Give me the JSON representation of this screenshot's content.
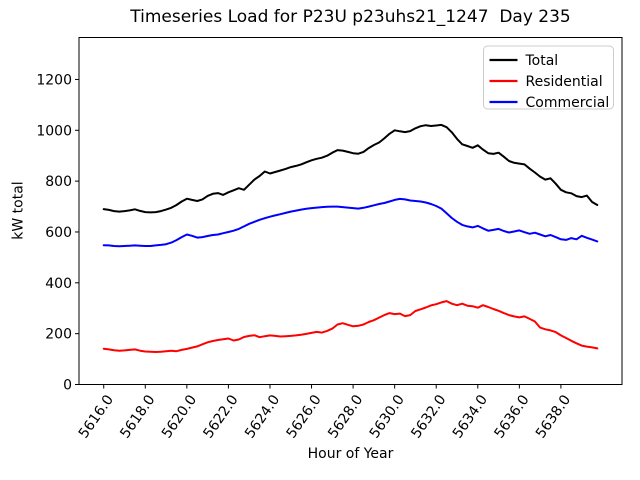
{
  "figure": {
    "background": "#ffffff"
  },
  "chart_data": {
    "type": "line",
    "title": "Timeseries Load for P23U p23uhs21_1247  Day 235",
    "xlabel": "Hour of Year",
    "ylabel": "kW total",
    "grid": false,
    "legend": {
      "position": "upper right",
      "border_color": "#cccccc"
    },
    "xlim": [
      5614.81,
      5640.94
    ],
    "ylim": [
      0,
      1365
    ],
    "xticks": {
      "values": [
        5616,
        5618,
        5620,
        5622,
        5624,
        5626,
        5628,
        5630,
        5632,
        5634,
        5636,
        5638
      ],
      "labels": [
        "5616.0",
        "5618.0",
        "5620.0",
        "5622.0",
        "5624.0",
        "5626.0",
        "5628.0",
        "5630.0",
        "5632.0",
        "5634.0",
        "5636.0",
        "5638.0"
      ]
    },
    "yticks": [
      0,
      200,
      400,
      600,
      800,
      1000,
      1200
    ],
    "x": [
      5616,
      5616.25,
      5616.5,
      5616.75,
      5617,
      5617.25,
      5617.5,
      5617.75,
      5618,
      5618.25,
      5618.5,
      5618.75,
      5619,
      5619.25,
      5619.5,
      5619.75,
      5620,
      5620.25,
      5620.5,
      5620.75,
      5621,
      5621.25,
      5621.5,
      5621.75,
      5622,
      5622.25,
      5622.5,
      5622.75,
      5623,
      5623.25,
      5623.5,
      5623.75,
      5624,
      5624.25,
      5624.5,
      5624.75,
      5625,
      5625.25,
      5625.5,
      5625.75,
      5626,
      5626.25,
      5626.5,
      5626.75,
      5627,
      5627.25,
      5627.5,
      5627.75,
      5628,
      5628.25,
      5628.5,
      5628.75,
      5629,
      5629.25,
      5629.5,
      5629.75,
      5630,
      5630.25,
      5630.5,
      5630.75,
      5631,
      5631.25,
      5631.5,
      5631.75,
      5632,
      5632.25,
      5632.5,
      5632.75,
      5633,
      5633.25,
      5633.5,
      5633.75,
      5634,
      5634.25,
      5634.5,
      5634.75,
      5635,
      5635.25,
      5635.5,
      5635.75,
      5636,
      5636.25,
      5636.5,
      5636.75,
      5637,
      5637.25,
      5637.5,
      5637.75,
      5638,
      5638.25,
      5638.5,
      5638.75,
      5639,
      5639.25,
      5639.5,
      5639.75
    ],
    "series": [
      {
        "name": "Total",
        "color": "#000000",
        "values": [
          690,
          687,
          682,
          680,
          682,
          685,
          689,
          683,
          678,
          677,
          678,
          682,
          688,
          695,
          706,
          720,
          731,
          726,
          722,
          728,
          742,
          750,
          753,
          746,
          756,
          764,
          772,
          766,
          786,
          806,
          820,
          838,
          830,
          836,
          842,
          848,
          855,
          860,
          866,
          874,
          882,
          888,
          892,
          900,
          912,
          922,
          920,
          915,
          910,
          908,
          915,
          930,
          942,
          952,
          968,
          986,
          1000,
          996,
          993,
          997,
          1008,
          1016,
          1020,
          1017,
          1019,
          1021,
          1012,
          992,
          966,
          945,
          938,
          931,
          941,
          924,
          910,
          907,
          912,
          896,
          879,
          872,
          869,
          866,
          849,
          834,
          818,
          806,
          811,
          790,
          766,
          756,
          752,
          741,
          737,
          743,
          718,
          706
        ]
      },
      {
        "name": "Residential",
        "color": "#ff0000",
        "values": [
          141,
          138,
          135,
          133,
          134,
          136,
          138,
          133,
          130,
          129,
          128,
          129,
          131,
          133,
          131,
          136,
          140,
          145,
          150,
          158,
          166,
          171,
          175,
          178,
          181,
          173,
          177,
          187,
          191,
          194,
          186,
          190,
          193,
          191,
          189,
          190,
          191,
          193,
          196,
          199,
          203,
          207,
          204,
          211,
          220,
          236,
          241,
          235,
          229,
          231,
          236,
          246,
          253,
          263,
          273,
          281,
          277,
          279,
          269,
          273,
          289,
          296,
          303,
          311,
          316,
          323,
          328,
          318,
          312,
          318,
          310,
          308,
          302,
          312,
          305,
          297,
          290,
          281,
          273,
          268,
          264,
          268,
          258,
          248,
          224,
          217,
          213,
          206,
          193,
          183,
          172,
          162,
          153,
          149,
          146,
          142
        ]
      },
      {
        "name": "Commercial",
        "color": "#0000ff",
        "values": [
          548,
          547,
          545,
          544,
          545,
          546,
          547,
          546,
          545,
          545,
          547,
          549,
          552,
          558,
          568,
          580,
          590,
          585,
          578,
          580,
          584,
          588,
          590,
          595,
          600,
          605,
          612,
          622,
          632,
          640,
          648,
          654,
          660,
          665,
          670,
          675,
          680,
          684,
          688,
          691,
          694,
          696,
          698,
          699,
          700,
          700,
          698,
          696,
          694,
          692,
          695,
          700,
          705,
          710,
          714,
          720,
          726,
          730,
          728,
          724,
          722,
          720,
          716,
          710,
          702,
          692,
          674,
          655,
          640,
          628,
          622,
          618,
          624,
          614,
          605,
          608,
          612,
          604,
          598,
          602,
          606,
          599,
          593,
          597,
          590,
          583,
          588,
          580,
          571,
          569,
          576,
          571,
          585,
          577,
          570,
          563
        ]
      }
    ]
  }
}
